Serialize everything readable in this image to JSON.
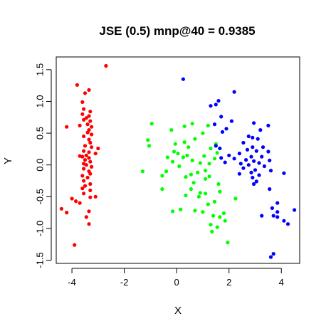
{
  "chart_data": {
    "type": "scatter",
    "title": "JSE (0.5) mnp@40 = 0.9385",
    "xlabel": "X",
    "ylabel": "Y",
    "xlim": [
      -4.6,
      4.7
    ],
    "ylim": [
      -1.55,
      1.7
    ],
    "xticks": [
      -4,
      -2,
      0,
      2,
      4
    ],
    "yticks": [
      -1.5,
      -1.0,
      -0.5,
      0.0,
      0.5,
      1.0,
      1.5
    ],
    "xtick_labels": [
      "-4",
      "-2",
      "0",
      "2",
      "4"
    ],
    "ytick_labels": [
      "-1.5",
      "-1.0",
      "-0.5",
      "0.0",
      "0.5",
      "1.0",
      "1.5"
    ],
    "grid": false,
    "series": [
      {
        "color": "#ff0000",
        "points": [
          [
            -2.7,
            1.56
          ],
          [
            -3.8,
            1.26
          ],
          [
            -3.35,
            1.18
          ],
          [
            -3.5,
            1.13
          ],
          [
            -3.6,
            0.99
          ],
          [
            -3.55,
            0.88
          ],
          [
            -3.3,
            0.84
          ],
          [
            -3.6,
            0.8
          ],
          [
            -3.35,
            0.77
          ],
          [
            -3.45,
            0.74
          ],
          [
            -3.55,
            0.71
          ],
          [
            -3.3,
            0.69
          ],
          [
            -3.4,
            0.64
          ],
          [
            -3.25,
            0.6
          ],
          [
            -3.7,
            0.62
          ],
          [
            -4.2,
            0.6
          ],
          [
            -3.35,
            0.55
          ],
          [
            -3.4,
            0.51
          ],
          [
            -3.25,
            0.48
          ],
          [
            -3.55,
            0.45
          ],
          [
            -3.35,
            0.4
          ],
          [
            -3.3,
            0.35
          ],
          [
            -3.5,
            0.3
          ],
          [
            -3.25,
            0.28
          ],
          [
            -3.0,
            0.26
          ],
          [
            -3.55,
            0.22
          ],
          [
            -3.35,
            0.2
          ],
          [
            -3.1,
            0.18
          ],
          [
            -3.45,
            0.15
          ],
          [
            -3.7,
            0.14
          ],
          [
            -3.6,
            0.13
          ],
          [
            -3.35,
            0.11
          ],
          [
            -3.5,
            0.08
          ],
          [
            -3.3,
            0.05
          ],
          [
            -3.55,
            0.02
          ],
          [
            -3.45,
            0.0
          ],
          [
            -3.25,
            -0.03
          ],
          [
            -3.55,
            -0.06
          ],
          [
            -3.35,
            -0.1
          ],
          [
            -3.3,
            -0.14
          ],
          [
            -3.6,
            -0.17
          ],
          [
            -3.4,
            -0.2
          ],
          [
            -3.55,
            -0.25
          ],
          [
            -3.3,
            -0.3
          ],
          [
            -3.5,
            -0.33
          ],
          [
            -3.6,
            -0.37
          ],
          [
            -3.3,
            -0.4
          ],
          [
            -3.55,
            -0.45
          ],
          [
            -3.1,
            -0.5
          ],
          [
            -3.3,
            -0.51
          ],
          [
            -4.0,
            -0.53
          ],
          [
            -3.85,
            -0.57
          ],
          [
            -3.7,
            -0.6
          ],
          [
            -4.4,
            -0.69
          ],
          [
            -3.35,
            -0.73
          ],
          [
            -4.2,
            -0.75
          ],
          [
            -3.45,
            -0.82
          ],
          [
            -3.35,
            -0.93
          ],
          [
            -3.9,
            -1.26
          ]
        ]
      },
      {
        "color": "#00ff00",
        "points": [
          [
            0.6,
            0.65
          ],
          [
            -0.95,
            0.65
          ],
          [
            0.3,
            0.61
          ],
          [
            1.2,
            0.62
          ],
          [
            -0.2,
            0.55
          ],
          [
            1.0,
            0.5
          ],
          [
            -1.1,
            0.39
          ],
          [
            0.7,
            0.41
          ],
          [
            0.3,
            0.36
          ],
          [
            1.5,
            0.33
          ],
          [
            -0.05,
            0.33
          ],
          [
            -1.05,
            0.3
          ],
          [
            0.45,
            0.28
          ],
          [
            1.3,
            0.26
          ],
          [
            -0.1,
            0.21
          ],
          [
            0.05,
            0.18
          ],
          [
            1.55,
            0.19
          ],
          [
            0.4,
            0.15
          ],
          [
            1.05,
            0.14
          ],
          [
            -0.35,
            0.12
          ],
          [
            0.25,
            0.12
          ],
          [
            1.45,
            0.1
          ],
          [
            0.6,
            0.07
          ],
          [
            -0.15,
            0.05
          ],
          [
            0.9,
            0.03
          ],
          [
            1.25,
            0.02
          ],
          [
            0.1,
            -0.02
          ],
          [
            -1.3,
            -0.1
          ],
          [
            -0.4,
            -0.1
          ],
          [
            0.8,
            -0.12
          ],
          [
            1.1,
            -0.09
          ],
          [
            0.55,
            -0.15
          ],
          [
            -0.55,
            -0.17
          ],
          [
            1.25,
            -0.18
          ],
          [
            0.35,
            -0.19
          ],
          [
            1.1,
            -0.22
          ],
          [
            0.65,
            -0.28
          ],
          [
            1.6,
            -0.3
          ],
          [
            -0.55,
            -0.38
          ],
          [
            0.55,
            -0.38
          ],
          [
            1.65,
            -0.42
          ],
          [
            0.9,
            -0.44
          ],
          [
            1.1,
            -0.45
          ],
          [
            0.35,
            -0.48
          ],
          [
            0.85,
            -0.5
          ],
          [
            2.25,
            -0.53
          ],
          [
            1.45,
            -0.58
          ],
          [
            1.2,
            -0.62
          ],
          [
            0.15,
            -0.7
          ],
          [
            0.7,
            -0.72
          ],
          [
            -0.15,
            -0.73
          ],
          [
            1.0,
            -0.74
          ],
          [
            1.8,
            -0.76
          ],
          [
            1.4,
            -0.8
          ],
          [
            1.65,
            -0.82
          ],
          [
            1.85,
            -0.88
          ],
          [
            1.3,
            -0.94
          ],
          [
            1.55,
            -0.98
          ],
          [
            1.35,
            -1.05
          ],
          [
            1.95,
            -1.22
          ]
        ]
      },
      {
        "color": "#0000ff",
        "points": [
          [
            0.25,
            1.35
          ],
          [
            2.2,
            1.15
          ],
          [
            1.6,
            1.01
          ],
          [
            1.5,
            0.95
          ],
          [
            1.3,
            0.93
          ],
          [
            1.7,
            0.76
          ],
          [
            2.1,
            0.69
          ],
          [
            1.45,
            0.64
          ],
          [
            2.95,
            0.66
          ],
          [
            3.5,
            0.62
          ],
          [
            1.9,
            0.57
          ],
          [
            3.2,
            0.55
          ],
          [
            1.75,
            0.52
          ],
          [
            2.75,
            0.45
          ],
          [
            2.9,
            0.43
          ],
          [
            3.1,
            0.41
          ],
          [
            2.55,
            0.35
          ],
          [
            1.5,
            0.3
          ],
          [
            2.9,
            0.28
          ],
          [
            3.3,
            0.28
          ],
          [
            1.65,
            0.26
          ],
          [
            2.7,
            0.24
          ],
          [
            3.05,
            0.22
          ],
          [
            3.5,
            0.21
          ],
          [
            2.4,
            0.18
          ],
          [
            2.0,
            0.15
          ],
          [
            2.85,
            0.13
          ],
          [
            3.25,
            0.13
          ],
          [
            1.7,
            0.11
          ],
          [
            2.2,
            0.1
          ],
          [
            2.65,
            0.08
          ],
          [
            2.95,
            0.06
          ],
          [
            3.55,
            0.07
          ],
          [
            1.85,
            0.04
          ],
          [
            3.15,
            0.03
          ],
          [
            2.45,
            0.02
          ],
          [
            2.75,
            0.0
          ],
          [
            3.35,
            -0.02
          ],
          [
            2.55,
            -0.05
          ],
          [
            3.0,
            -0.08
          ],
          [
            3.6,
            -0.09
          ],
          [
            2.85,
            -0.12
          ],
          [
            4.1,
            -0.13
          ],
          [
            2.4,
            -0.14
          ],
          [
            3.15,
            -0.16
          ],
          [
            2.9,
            -0.2
          ],
          [
            3.05,
            -0.26
          ],
          [
            2.95,
            -0.3
          ],
          [
            3.55,
            -0.38
          ],
          [
            3.85,
            -0.6
          ],
          [
            3.65,
            -0.68
          ],
          [
            4.5,
            -0.71
          ],
          [
            3.85,
            -0.74
          ],
          [
            3.25,
            -0.8
          ],
          [
            3.7,
            -0.8
          ],
          [
            3.85,
            -0.82
          ],
          [
            4.1,
            -0.88
          ],
          [
            4.25,
            -0.93
          ],
          [
            3.7,
            -1.4
          ],
          [
            3.6,
            -1.45
          ]
        ]
      }
    ]
  }
}
